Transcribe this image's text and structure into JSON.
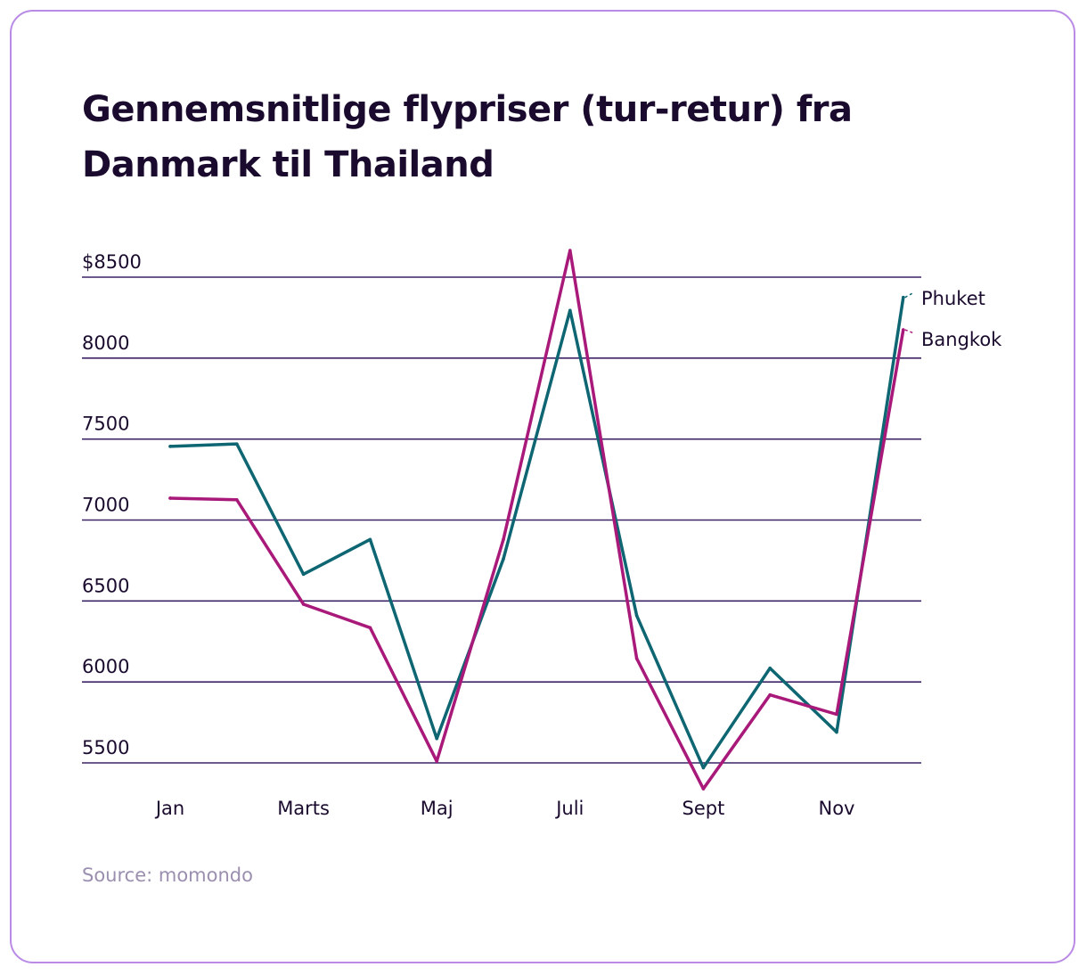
{
  "chart_data": {
    "type": "line",
    "title": "Gennemsnitlige flypriser (tur-retur) fra Danmark til Thailand",
    "xlabel": "",
    "ylabel": "",
    "x": [
      1,
      2,
      3,
      4,
      5,
      6,
      7,
      8,
      9,
      10,
      11,
      12
    ],
    "x_tick_labels": [
      {
        "x": 1,
        "label": "Jan"
      },
      {
        "x": 3,
        "label": "Marts"
      },
      {
        "x": 5,
        "label": "Maj"
      },
      {
        "x": 7,
        "label": "Juli"
      },
      {
        "x": 9,
        "label": "Sept"
      },
      {
        "x": 11,
        "label": "Nov"
      }
    ],
    "y_ticks": [
      5500,
      6000,
      6500,
      7000,
      7500,
      8000,
      8500
    ],
    "y_tick_labels": [
      "5500",
      "6000",
      "6500",
      "7000",
      "7500",
      "8000",
      "$8500"
    ],
    "ylim": [
      5500,
      8500
    ],
    "grid": true,
    "legend_placement": "right, at line ends",
    "series": [
      {
        "name": "Phuket",
        "color": "#0e6673",
        "values": [
          7455,
          7470,
          6665,
          6880,
          5650,
          6760,
          8295,
          6410,
          5470,
          6085,
          5690,
          8375
        ]
      },
      {
        "name": "Bangkok",
        "color": "#a8197a",
        "values": [
          7135,
          7125,
          6480,
          6335,
          5510,
          6880,
          8665,
          6145,
          5340,
          5920,
          5800,
          8175
        ]
      }
    ],
    "source": "Source: momondo"
  },
  "colors": {
    "border": "#b98ae6",
    "grid": "#3d2466",
    "text": "#1a0b2e",
    "source_text": "#9b8fb0"
  }
}
